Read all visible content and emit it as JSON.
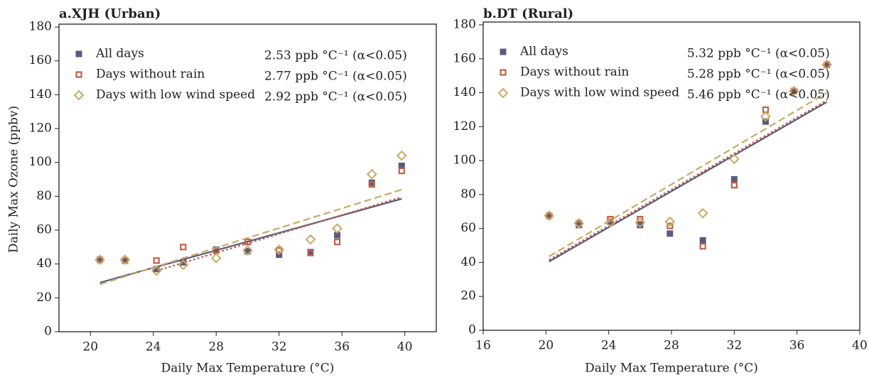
{
  "chart_data": [
    {
      "type": "scatter",
      "title": "a.XJH (Urban)",
      "x_label": "Daily Max Temperature (°C)",
      "y_label": "Daily Max Ozone (ppbv)",
      "xlim": [
        18,
        42
      ],
      "xticks": [
        20,
        24,
        28,
        32,
        36,
        40
      ],
      "ylim": [
        0,
        180
      ],
      "yticks": [
        0,
        20,
        40,
        60,
        80,
        100,
        120,
        140,
        160,
        180
      ],
      "x": [
        20.6,
        22.2,
        24.2,
        25.9,
        28,
        30,
        32,
        34,
        35.7,
        37.9,
        39.8
      ],
      "series": [
        {
          "name": "All days",
          "color": "#5a5a80",
          "marker": "square",
          "line": "solid",
          "annotation": "2.53 ppb °C⁻¹ (α<0.05)",
          "values": [
            42.5,
            42,
            37,
            41,
            48.5,
            47.5,
            45.5,
            47,
            57,
            88,
            98
          ],
          "trend_x": [
            20.6,
            39.8
          ],
          "trend": [
            29,
            78.5
          ]
        },
        {
          "name": "Days without rain",
          "color": "#c0604c",
          "marker": "open-square",
          "line": "dotted",
          "annotation": "2.77 ppb °C⁻¹ (α<0.05)",
          "values": [
            42.5,
            42,
            42,
            50,
            48,
            53,
            48,
            46.5,
            53,
            87,
            95
          ],
          "trend_x": [
            24.2,
            39.8
          ],
          "trend": [
            36,
            79.5
          ]
        },
        {
          "name": "Days with low wind speed",
          "color": "#c8aa64",
          "marker": "open-diamond",
          "line": "dashed",
          "annotation": "2.92 ppb °C⁻¹ (α<0.05)",
          "values": [
            42.5,
            42.5,
            36,
            39.5,
            43.5,
            48,
            48.5,
            54.5,
            61,
            93,
            104
          ],
          "trend_x": [
            20.6,
            40
          ],
          "trend": [
            28,
            84.5
          ]
        }
      ]
    },
    {
      "type": "scatter",
      "title": "b.DT (Rural)",
      "x_label": "Daily Max Temperature (°C)",
      "xlim": [
        16,
        40
      ],
      "xticks": [
        16,
        20,
        24,
        28,
        32,
        36,
        40
      ],
      "ylim": [
        0,
        180
      ],
      "yticks": [
        0,
        20,
        40,
        60,
        80,
        100,
        120,
        140,
        160,
        180
      ],
      "x": [
        20.2,
        22.1,
        24.1,
        26,
        27.9,
        30,
        32,
        34,
        35.8,
        37.9
      ],
      "series": [
        {
          "name": "All days",
          "color": "#5a5a80",
          "marker": "square",
          "line": "solid",
          "annotation": "5.32 ppb °C⁻¹ (α<0.05)",
          "values": [
            67.5,
            62,
            64,
            62,
            57,
            53,
            89,
            123,
            141,
            156.5
          ],
          "trend_x": [
            20.2,
            37.9
          ],
          "trend": [
            40.5,
            134.5
          ]
        },
        {
          "name": "Days without rain",
          "color": "#c0604c",
          "marker": "open-square",
          "line": "dotted",
          "annotation": "5.28 ppb °C⁻¹ (α<0.05)",
          "values": [
            67.5,
            63,
            65.5,
            65.5,
            61.5,
            49.5,
            85.5,
            130,
            141,
            156.5
          ],
          "trend_x": [
            20.2,
            37.9
          ],
          "trend": [
            41.5,
            135.5
          ]
        },
        {
          "name": "Days with low wind speed",
          "color": "#c8aa64",
          "marker": "open-diamond",
          "line": "dashed",
          "annotation": "5.46 ppb °C⁻¹ (α<0.05)",
          "values": [
            67.5,
            63,
            63.5,
            63.5,
            64,
            69,
            101,
            126,
            141,
            156.5
          ],
          "trend_x": [
            20.2,
            37.9
          ],
          "trend": [
            43.5,
            140
          ]
        }
      ]
    }
  ]
}
